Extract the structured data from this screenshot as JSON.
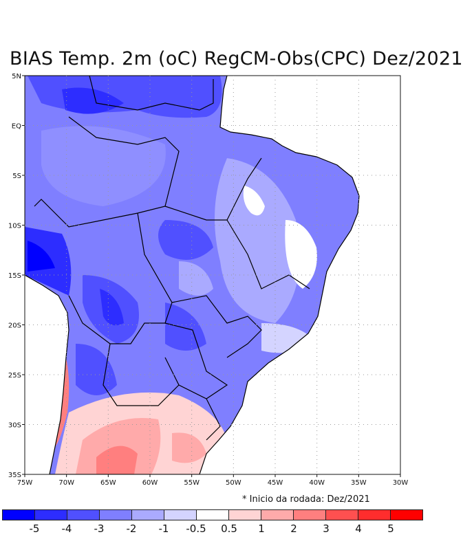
{
  "title": "BIAS Temp. 2m (oC) RegCM-Obs(CPC) Dez/2021",
  "note": "* Inicio da rodada: Dez/2021",
  "map": {
    "lon_range": [
      -75,
      -30
    ],
    "lat_range": [
      -35,
      5
    ],
    "lat_labels": [
      "5N",
      "EQ",
      "5S",
      "10S",
      "15S",
      "20S",
      "25S",
      "30S",
      "35S"
    ],
    "lon_labels": [
      "75W",
      "70W",
      "65W",
      "60W",
      "55W",
      "50W",
      "45W",
      "40W",
      "35W",
      "30W"
    ]
  },
  "colorbar": {
    "colors": [
      "#0000ff",
      "#2d2dff",
      "#5050ff",
      "#7f7fff",
      "#aaaaff",
      "#d4d4ff",
      "#ffffff",
      "#ffd4d4",
      "#ffaaaa",
      "#ff7f7f",
      "#ff5050",
      "#ff2d2d",
      "#ff0000"
    ],
    "labels": [
      "-5",
      "-4",
      "-3",
      "-2",
      "-1",
      "-0.5",
      "0.5",
      "1",
      "2",
      "3",
      "4",
      "5"
    ]
  }
}
